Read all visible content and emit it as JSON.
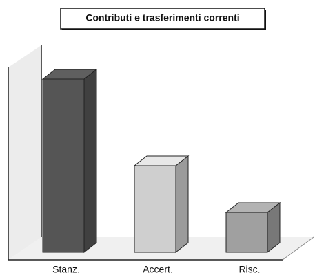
{
  "chart_data": {
    "type": "bar3d",
    "title": "Contributi e trasferimenti correnti",
    "categories": [
      "Stanz.",
      "Accert.",
      "Risc."
    ],
    "values": [
      100,
      50,
      23
    ],
    "colors": [
      "#555555",
      "#cfcfcf",
      "#a0a0a0"
    ]
  }
}
